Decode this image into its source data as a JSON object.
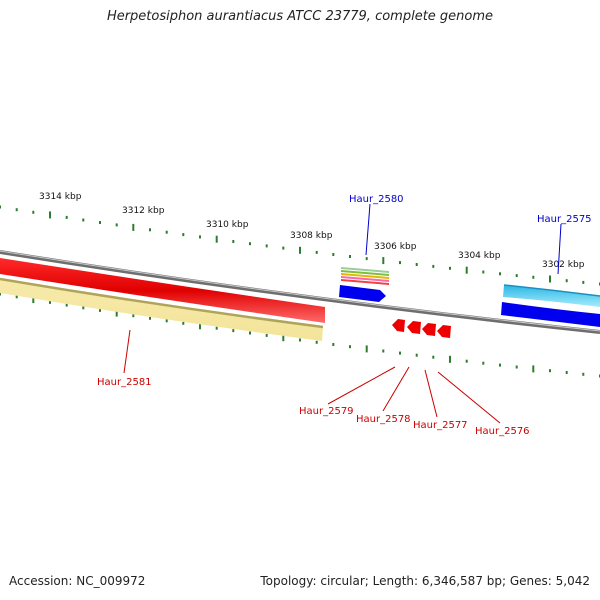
{
  "title": "Herpetosiphon aurantiacus ATCC 23779, complete genome",
  "footer": {
    "accession": "Accession: NC_009972",
    "topology": "Topology: circular; Length: 6,346,587 bp; Genes: 5,042"
  },
  "ticks": [
    "3314 kbp",
    "3312 kbp",
    "3310 kbp",
    "3308 kbp",
    "3306 kbp",
    "3304 kbp",
    "3302 kbp"
  ],
  "genes": [
    {
      "label": "Haur_2580",
      "strand": "forward",
      "color": "#0000cc"
    },
    {
      "label": "Haur_2575",
      "strand": "forward",
      "color": "#0000cc"
    },
    {
      "label": "Haur_2581",
      "strand": "reverse",
      "color": "#cc0000"
    },
    {
      "label": "Haur_2579",
      "strand": "reverse",
      "color": "#cc0000"
    },
    {
      "label": "Haur_2578",
      "strand": "reverse",
      "color": "#cc0000"
    },
    {
      "label": "Haur_2577",
      "strand": "reverse",
      "color": "#cc0000"
    },
    {
      "label": "Haur_2576",
      "strand": "reverse",
      "color": "#cc0000"
    }
  ],
  "colors": {
    "backbone": "#808080",
    "tick": "#2e7d2e",
    "forward_label": "#0000cc",
    "reverse_label": "#cc0000",
    "red_feature": "#ff0000",
    "yellow_feature": "#f5e6a0",
    "blue_feature": "#0000ee",
    "cyan_feature": "#33ccee"
  }
}
